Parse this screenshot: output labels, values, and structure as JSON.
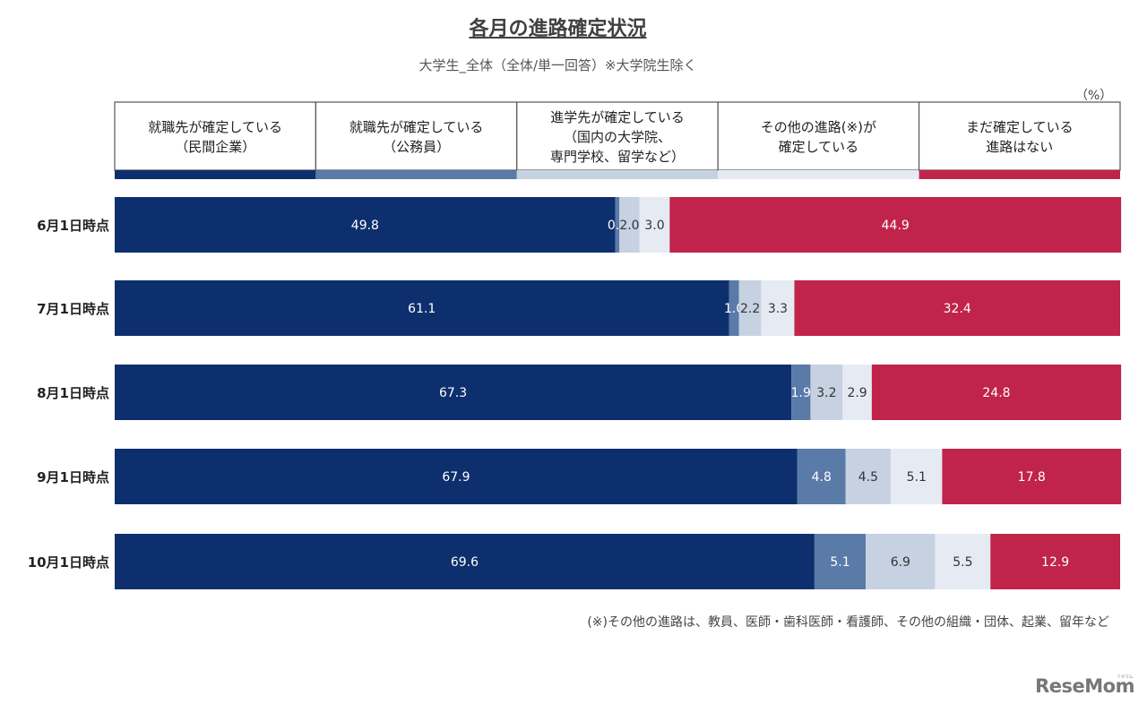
{
  "chart_data": {
    "type": "bar",
    "orientation": "horizontal",
    "stacked": true,
    "title": "各月の進路確定状況",
    "subtitle": "大学生_全体（全体/単一回答）※大学院生除く",
    "unit": "（%）",
    "categories": [
      "6月1日時点",
      "7月1日時点",
      "8月1日時点",
      "9月1日時点",
      "10月1日時点"
    ],
    "series": [
      {
        "name": "就職先が確定している（民間企業）",
        "legend_lines": [
          "就職先が確定している",
          "（民間企業）"
        ],
        "color": "#0e2f6e",
        "label_color": "#ffffff",
        "values": [
          49.8,
          61.1,
          67.3,
          67.9,
          69.6
        ]
      },
      {
        "name": "就職先が確定している（公務員）",
        "legend_lines": [
          "就職先が確定している",
          "（公務員）"
        ],
        "color": "#5a7aa8",
        "label_color": "#ffffff",
        "values": [
          0.4,
          1.0,
          1.9,
          4.8,
          5.1
        ]
      },
      {
        "name": "進学先が確定している（国内の大学院、専門学校、留学など）",
        "legend_lines": [
          "進学先が確定している",
          "（国内の大学院、",
          "専門学校、留学など）"
        ],
        "color": "#c6d1e2",
        "label_color": "#333333",
        "values": [
          2.0,
          2.2,
          3.2,
          4.5,
          6.9
        ]
      },
      {
        "name": "その他の進路(※)が確定している",
        "legend_lines": [
          "その他の進路(※)が",
          "確定している"
        ],
        "color": "#e6ebf3",
        "label_color": "#333333",
        "values": [
          3.0,
          3.3,
          2.9,
          5.1,
          5.5
        ]
      },
      {
        "name": "まだ確定している進路はない",
        "legend_lines": [
          "まだ確定している",
          "進路はない"
        ],
        "color": "#c0244a",
        "label_color": "#ffffff",
        "values": [
          44.9,
          32.4,
          24.8,
          17.8,
          12.9
        ]
      }
    ],
    "xlim": [
      0,
      100
    ],
    "legend_position": "top",
    "note": "(※)その他の進路は、教員、医師・歯科医師・看護師、その他の組織・団体、起業、留年など"
  },
  "brand": {
    "logo_text": "ReseMom",
    "logo_small": "リセマム"
  }
}
